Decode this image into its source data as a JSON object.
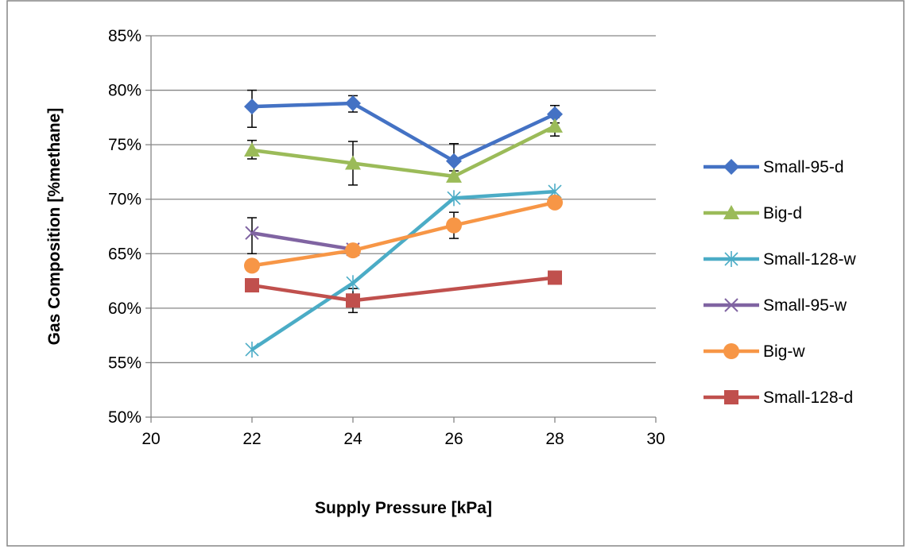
{
  "chart_data": {
    "type": "line",
    "title": "",
    "xlabel": "Supply Pressure [kPa]",
    "ylabel": "Gas Composition  [%methane]",
    "xlim": [
      20,
      30
    ],
    "ylim": [
      50,
      85
    ],
    "x_ticks": [
      20,
      22,
      24,
      26,
      28,
      30
    ],
    "x_tick_labels": [
      "20",
      "22",
      "24",
      "26",
      "28",
      "30"
    ],
    "y_ticks": [
      50,
      55,
      60,
      65,
      70,
      75,
      80,
      85
    ],
    "y_tick_labels": [
      "50%",
      "55%",
      "60%",
      "65%",
      "70%",
      "75%",
      "80%",
      "85%"
    ],
    "grid": "horizontal",
    "legend": "right",
    "series": [
      {
        "name": "Small-95-d",
        "color": "#4472c4",
        "marker": "diamond",
        "x": [
          22,
          24,
          26,
          28
        ],
        "y": [
          78.5,
          78.8,
          73.5,
          77.8
        ],
        "err_low": [
          76.6,
          78.0,
          72.6,
          77.0
        ],
        "err_high": [
          80.0,
          79.5,
          75.1,
          78.6
        ]
      },
      {
        "name": "Big-d",
        "color": "#9bbb59",
        "marker": "triangle",
        "x": [
          22,
          24,
          26,
          28
        ],
        "y": [
          74.5,
          73.3,
          72.1,
          76.7
        ],
        "err_low": [
          73.7,
          71.3,
          null,
          75.8
        ],
        "err_high": [
          75.4,
          75.3,
          null,
          77.5
        ]
      },
      {
        "name": "Small-128-w",
        "color": "#4bacc6",
        "marker": "star",
        "x": [
          22,
          24,
          26,
          28
        ],
        "y": [
          56.2,
          62.3,
          70.1,
          70.7
        ],
        "err_low": [
          null,
          null,
          null,
          null
        ],
        "err_high": [
          null,
          null,
          null,
          null
        ]
      },
      {
        "name": "Small-95-w",
        "color": "#8064a2",
        "marker": "x",
        "x": [
          22,
          24
        ],
        "y": [
          66.9,
          65.4
        ],
        "err_low": [
          65.0,
          null
        ],
        "err_high": [
          68.3,
          null
        ]
      },
      {
        "name": "Big-w",
        "color": "#f79646",
        "marker": "circle",
        "x": [
          22,
          24,
          26,
          28
        ],
        "y": [
          63.9,
          65.3,
          67.6,
          69.7
        ],
        "err_low": [
          null,
          null,
          66.4,
          null
        ],
        "err_high": [
          null,
          null,
          68.8,
          null
        ]
      },
      {
        "name": "Small-128-d",
        "color": "#c0504d",
        "marker": "square",
        "x": [
          22,
          24,
          28
        ],
        "y": [
          62.1,
          60.7,
          62.8
        ],
        "err_low": [
          null,
          59.6,
          null
        ],
        "err_high": [
          null,
          61.8,
          null
        ]
      }
    ]
  }
}
